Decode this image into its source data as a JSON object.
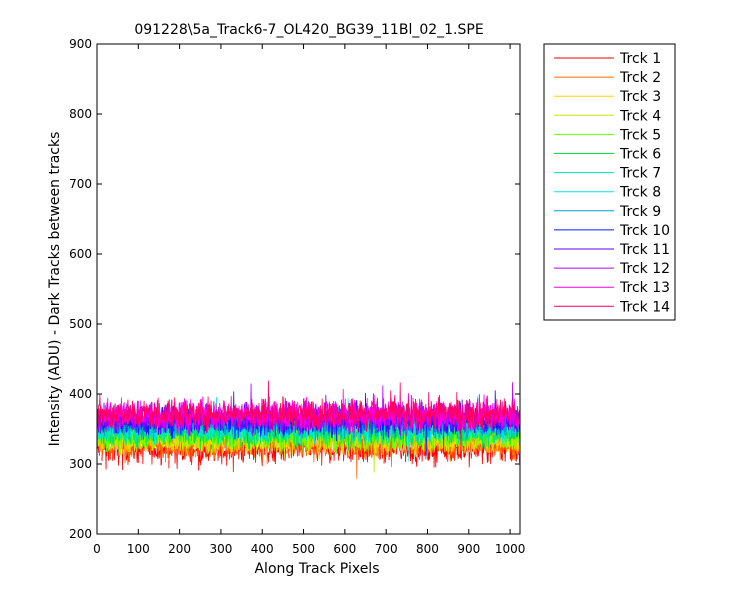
{
  "chart_data": {
    "type": "line",
    "title": "091228\\5a_Track6-7_OL420_BG39_11Bl_02_1.SPE",
    "xlabel": "Along Track Pixels",
    "ylabel": "Intensity (ADU) - Dark Tracks between tracks",
    "xlim": [
      0,
      1024
    ],
    "ylim": [
      200,
      900
    ],
    "xticks": [
      0,
      100,
      200,
      300,
      400,
      500,
      600,
      700,
      800,
      900,
      1000
    ],
    "yticks": [
      200,
      300,
      400,
      500,
      600,
      700,
      800,
      900
    ],
    "grid": false,
    "legend_position": "outside-top-right",
    "n_points": 1024,
    "series": [
      {
        "name": "Trck 1",
        "color": "#ff0000",
        "mean": 322,
        "noise": 11
      },
      {
        "name": "Trck 2",
        "color": "#ff6a00",
        "mean": 328,
        "noise": 10
      },
      {
        "name": "Trck 3",
        "color": "#ffd400",
        "mean": 334,
        "noise": 10
      },
      {
        "name": "Trck 4",
        "color": "#c8e600",
        "mean": 337,
        "noise": 10
      },
      {
        "name": "Trck 5",
        "color": "#6aff00",
        "mean": 341,
        "noise": 10
      },
      {
        "name": "Trck 6",
        "color": "#00e640",
        "mean": 345,
        "noise": 10
      },
      {
        "name": "Trck 7",
        "color": "#00e6a0",
        "mean": 349,
        "noise": 10
      },
      {
        "name": "Trck 8",
        "color": "#00e6e6",
        "mean": 353,
        "noise": 10
      },
      {
        "name": "Trck 9",
        "color": "#00a0c8",
        "mean": 357,
        "noise": 10
      },
      {
        "name": "Trck 10",
        "color": "#0020ff",
        "mean": 361,
        "noise": 10
      },
      {
        "name": "Trck 11",
        "color": "#5a00ff",
        "mean": 365,
        "noise": 10
      },
      {
        "name": "Trck 12",
        "color": "#b400ff",
        "mean": 368,
        "noise": 11
      },
      {
        "name": "Trck 13",
        "color": "#ff00e6",
        "mean": 370,
        "noise": 11
      },
      {
        "name": "Trck 14",
        "color": "#ff0064",
        "mean": 372,
        "noise": 11
      }
    ]
  }
}
